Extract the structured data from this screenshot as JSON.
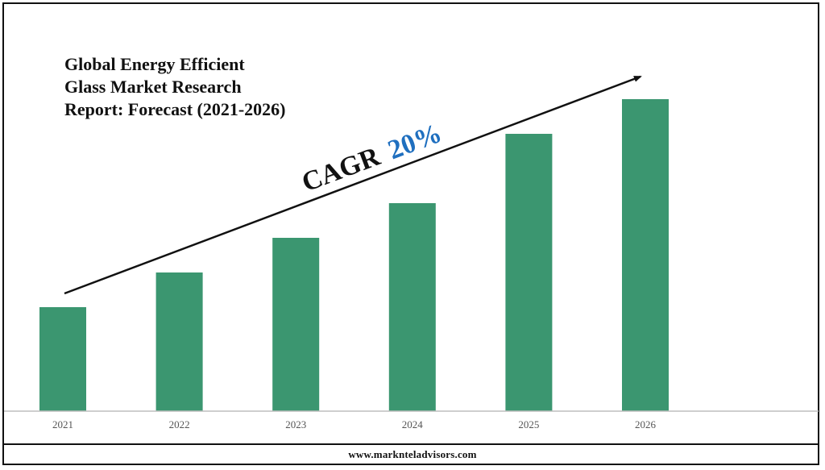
{
  "title_lines": [
    "Global Energy Efficient",
    "Glass Market Research",
    "Report: Forecast (2021-2026)"
  ],
  "cagr": {
    "label": "CAGR",
    "value": "20%",
    "value_color": "#1f6fbf"
  },
  "footer": {
    "url": "www.marknteladvisors.com"
  },
  "colors": {
    "bar": "#3b9670",
    "axis": "#bdbdbd",
    "arrow": "#111111"
  },
  "chart_data": {
    "type": "bar",
    "title": "Global Energy Efficient Glass Market Research Report: Forecast (2021-2026)",
    "categories": [
      "2021",
      "2022",
      "2023",
      "2024",
      "2025",
      "2026"
    ],
    "values": [
      30,
      40,
      50,
      60,
      80,
      90
    ],
    "ylim": [
      0,
      100
    ],
    "grid": false,
    "legend": "none",
    "annotation": "CAGR 20%"
  }
}
